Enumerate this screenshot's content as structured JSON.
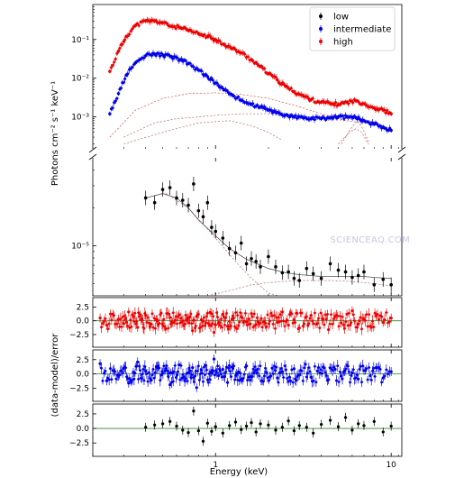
{
  "chart_data": {
    "type": "scatter",
    "xlabel": "Energy (keV)",
    "ylabel_top": "Photons cm$^{-2}$ s$^{-1}$ keV$^{-1}$",
    "ylabel_top_display": "Photons cm⁻² s⁻¹ keV⁻¹",
    "ylabel_residuals": "(data-model)/error",
    "x_scale": "log",
    "xlim": [
      0.2,
      11.5
    ],
    "x_tick_labels": [
      "1",
      "10"
    ],
    "legend_position": "top-right",
    "colors": {
      "low": "#000000",
      "intermediate": "#0000ee",
      "high": "#ee0000"
    },
    "panels": [
      {
        "id": "upper",
        "y_scale": "log",
        "ylim": [
          0.00015,
          0.8
        ],
        "y_tick_labels": [
          "10⁻³",
          "10⁻²",
          "10⁻¹"
        ],
        "series": [
          {
            "name": "high",
            "color": "#ee0000",
            "x": [
              0.25,
              0.28,
              0.31,
              0.35,
              0.4,
              0.45,
              0.5,
              0.56,
              0.63,
              0.7,
              0.8,
              0.9,
              1.0,
              1.12,
              1.25,
              1.4,
              1.6,
              1.8,
              2.0,
              2.25,
              2.5,
              2.8,
              3.15,
              3.5,
              4.0,
              4.5,
              5.0,
              5.6,
              6.3,
              7.0,
              8.0,
              9.0,
              10.0
            ],
            "y": [
              0.015,
              0.05,
              0.12,
              0.23,
              0.3,
              0.3,
              0.27,
              0.22,
              0.2,
              0.17,
              0.14,
              0.12,
              0.1,
              0.075,
              0.058,
              0.045,
              0.03,
              0.02,
              0.013,
              0.009,
              0.0062,
              0.0045,
              0.0035,
              0.0028,
              0.0024,
              0.0022,
              0.0021,
              0.0024,
              0.0026,
              0.0022,
              0.0017,
              0.0015,
              0.0012
            ]
          },
          {
            "name": "intermediate",
            "color": "#0000ee",
            "x": [
              0.25,
              0.28,
              0.31,
              0.35,
              0.4,
              0.45,
              0.5,
              0.56,
              0.63,
              0.7,
              0.8,
              0.9,
              1.0,
              1.12,
              1.25,
              1.4,
              1.6,
              1.8,
              2.0,
              2.25,
              2.5,
              2.8,
              3.15,
              3.5,
              4.0,
              4.5,
              5.0,
              5.6,
              6.3,
              7.0,
              8.0,
              9.0,
              10.0
            ],
            "y": [
              0.0012,
              0.004,
              0.012,
              0.025,
              0.038,
              0.042,
              0.04,
              0.036,
              0.03,
              0.024,
              0.016,
              0.011,
              0.0075,
              0.005,
              0.0036,
              0.0027,
              0.0021,
              0.0018,
              0.0015,
              0.0013,
              0.0011,
              0.001,
              0.00095,
              0.0009,
              0.0009,
              0.00095,
              0.001,
              0.001,
              0.00095,
              0.0008,
              0.00065,
              0.00055,
              0.00045
            ]
          }
        ],
        "model_components": [
          {
            "name": "high-soft",
            "color": "#ee0000",
            "x": [
              0.25,
              0.35,
              0.5,
              0.7,
              1.0,
              1.4,
              2.0,
              2.8,
              4.0,
              5.5
            ],
            "y": [
              0.0003,
              0.0015,
              0.003,
              0.004,
              0.0042,
              0.0038,
              0.003,
              0.002,
              0.0012,
              0.0008
            ]
          },
          {
            "name": "high-line",
            "color": "#ee0000",
            "x": [
              5.2,
              5.9,
              6.4,
              6.9,
              7.5
            ],
            "y": [
              0.0002,
              0.0005,
              0.0008,
              0.0005,
              0.0002
            ]
          },
          {
            "name": "intermediate-soft",
            "color": "#993333",
            "x": [
              0.3,
              0.45,
              0.6,
              0.8,
              1.0,
              1.4,
              2.0,
              2.8,
              3.5,
              4.5,
              5.5,
              7.0,
              8.5
            ],
            "y": [
              0.0003,
              0.0007,
              0.0009,
              0.001,
              0.0011,
              0.0012,
              0.0012,
              0.0011,
              0.001,
              0.0009,
              0.0008,
              0.0007,
              0.0006
            ]
          },
          {
            "name": "intermediate-line",
            "color": "#993333",
            "x": [
              5.0,
              5.8,
              6.3,
              6.8,
              7.4
            ],
            "y": [
              0.0002,
              0.0004,
              0.0005,
              0.0004,
              0.0002
            ]
          },
          {
            "name": "intermediate-hot",
            "color": "#993333",
            "x": [
              0.3,
              0.5,
              0.8,
              1.2,
              1.6,
              2.0,
              2.4
            ],
            "y": [
              0.0002,
              0.0004,
              0.0007,
              0.0008,
              0.0006,
              0.0004,
              0.00025
            ]
          }
        ]
      },
      {
        "id": "low",
        "y_scale": "log",
        "ylim": [
          4e-06,
          5e-05
        ],
        "y_tick_labels": [
          "10⁻⁵"
        ],
        "series": [
          {
            "name": "low",
            "color": "#000000",
            "x": [
              0.4,
              0.45,
              0.5,
              0.55,
              0.6,
              0.65,
              0.7,
              0.75,
              0.8,
              0.85,
              0.9,
              0.95,
              1.0,
              1.1,
              1.2,
              1.3,
              1.4,
              1.5,
              1.6,
              1.7,
              1.8,
              2.0,
              2.2,
              2.4,
              2.6,
              2.8,
              3.0,
              3.3,
              3.6,
              4.0,
              4.5,
              5.0,
              5.5,
              6.0,
              6.5,
              7.0,
              8.0,
              9.0,
              10.0
            ],
            "y": [
              2.4e-05,
              2.2e-05,
              2.8e-05,
              2.9e-05,
              2.4e-05,
              2.3e-05,
              2.1e-05,
              3.1e-05,
              1.9e-05,
              1.7e-05,
              2.2e-05,
              1.4e-05,
              1.3e-05,
              1.15e-05,
              9.5e-06,
              8.8e-06,
              1.05e-05,
              7.2e-06,
              7.9e-06,
              7.5e-06,
              6.8e-06,
              8.2e-06,
              6.8e-06,
              6.1e-06,
              6.2e-06,
              5.5e-06,
              5.3e-06,
              6.6e-06,
              6e-06,
              5.5e-06,
              7.2e-06,
              6.4e-06,
              6.2e-06,
              5.6e-06,
              5.8e-06,
              6.2e-06,
              4.9e-06,
              5.4e-06,
              4.9e-06
            ]
          }
        ],
        "model_components": [
          {
            "name": "low-total",
            "color": "#444444",
            "x": [
              0.4,
              0.5,
              0.6,
              0.7,
              0.8,
              1.0,
              1.2,
              1.5,
              2.0,
              2.5,
              3.0,
              4.0,
              5.0,
              6.0,
              7.0,
              8.0,
              10.0
            ],
            "y": [
              2.4e-05,
              2.6e-05,
              2.4e-05,
              2e-05,
              1.6e-05,
              1.2e-05,
              9.5e-06,
              7.8e-06,
              6.6e-06,
              6.1e-06,
              5.9e-06,
              5.7e-06,
              5.7e-06,
              5.7e-06,
              5.7e-06,
              5.6e-06,
              5.5e-06
            ]
          },
          {
            "name": "low-soft",
            "color": "#993333",
            "x": [
              0.5,
              0.7,
              1.0,
              1.3,
              1.6,
              2.0,
              2.3
            ],
            "y": [
              2.7e-05,
              2e-05,
              1.15e-05,
              7.5e-06,
              5.5e-06,
              4.2e-06,
              3.7e-06
            ]
          },
          {
            "name": "low-hard",
            "color": "#993333",
            "x": [
              0.9,
              1.2,
              1.6,
              2.0,
              3.0,
              4.5,
              6.0,
              8.0,
              10.0
            ],
            "y": [
              3.8e-06,
              4.4e-06,
              4.9e-06,
              5.1e-06,
              5.3e-06,
              5.3e-06,
              5.2e-06,
              5e-06,
              4.8e-06
            ]
          }
        ]
      },
      {
        "id": "res-high",
        "ylim": [
          -4.8,
          4.2
        ],
        "y_tick_labels": [
          "2.5",
          "0.0",
          "−2.5"
        ],
        "series_name": "high",
        "color": "#ee0000"
      },
      {
        "id": "res-intermediate",
        "ylim": [
          -4.8,
          4.2
        ],
        "y_tick_labels": [
          "2.5",
          "0.0",
          "−2.5"
        ],
        "series_name": "intermediate",
        "color": "#0000ee"
      },
      {
        "id": "res-low",
        "ylim": [
          -4.8,
          4.2
        ],
        "y_tick_labels": [
          "2.5",
          "0.0",
          "−2.5"
        ],
        "series_name": "low",
        "color": "#000000"
      }
    ],
    "residuals": {
      "high": {
        "x": [
          0.22,
          0.24,
          0.26,
          0.28,
          0.3,
          0.32,
          0.34,
          0.36,
          0.38,
          0.4,
          0.43,
          0.46,
          0.49,
          0.52,
          0.55,
          0.58,
          0.62,
          0.66,
          0.7,
          0.74,
          0.78,
          0.83,
          0.88,
          0.93,
          0.98,
          1.04,
          1.1,
          1.17,
          1.24,
          1.32,
          1.4,
          1.5,
          1.6,
          1.7,
          1.82,
          1.95,
          2.1,
          2.25,
          2.4,
          2.6,
          2.8,
          3.0,
          3.25,
          3.5,
          3.8,
          4.1,
          4.4,
          4.8,
          5.2,
          5.6,
          6.0,
          6.5,
          7.0,
          7.6,
          8.2,
          9.0,
          10.0
        ],
        "y": [
          0.5,
          -0.8,
          1.2,
          0.3,
          -0.5,
          1.6,
          0.8,
          -1.2,
          0.4,
          1.0,
          -0.6,
          0.2,
          1.4,
          -1.5,
          0.6,
          -0.3,
          1.1,
          -0.9,
          0.5,
          -1.8,
          0.8,
          0.2,
          -0.4,
          1.5,
          -2.1,
          -0.5,
          1.2,
          -1.0,
          0.3,
          -1.4,
          0.7,
          -0.2,
          1.3,
          -0.7,
          0.4,
          -1.1,
          0.9,
          -0.3,
          1.6,
          -0.8,
          0.2,
          -1.3,
          0.6,
          1.0,
          -0.5,
          0.3,
          -1.6,
          0.8,
          -0.4,
          1.2,
          1.8,
          -0.6,
          0.4,
          -1.0,
          0.9,
          -0.3,
          0.5
        ]
      },
      "intermediate": {
        "x": [
          0.22,
          0.24,
          0.26,
          0.28,
          0.3,
          0.32,
          0.34,
          0.36,
          0.38,
          0.4,
          0.43,
          0.46,
          0.49,
          0.52,
          0.55,
          0.58,
          0.62,
          0.66,
          0.7,
          0.74,
          0.78,
          0.83,
          0.88,
          0.93,
          0.98,
          1.04,
          1.1,
          1.17,
          1.24,
          1.32,
          1.4,
          1.5,
          1.6,
          1.7,
          1.82,
          1.95,
          2.1,
          2.25,
          2.4,
          2.6,
          2.8,
          3.0,
          3.25,
          3.5,
          3.8,
          4.1,
          4.4,
          4.8,
          5.2,
          5.6,
          6.0,
          6.5,
          7.0,
          7.6,
          8.2,
          9.0,
          10.0
        ],
        "y": [
          1.8,
          -1.2,
          0.6,
          -0.4,
          1.0,
          -1.6,
          0.3,
          2.1,
          -0.8,
          0.5,
          -1.1,
          1.3,
          -0.2,
          0.9,
          -1.9,
          0.4,
          1.6,
          -0.6,
          0.2,
          1.1,
          -2.4,
          0.7,
          1.5,
          -1.0,
          2.6,
          -0.3,
          0.8,
          -1.5,
          1.2,
          0.1,
          -0.9,
          1.4,
          -0.5,
          0.6,
          -1.2,
          0.3,
          1.0,
          -0.7,
          0.4,
          -1.3,
          0.9,
          -0.2,
          1.7,
          -0.6,
          0.5,
          1.2,
          -1.0,
          0.8,
          -0.4,
          1.5,
          0.2,
          -0.9,
          0.6,
          -0.3,
          1.1,
          -0.7,
          0.4
        ]
      },
      "low": {
        "x": [
          0.4,
          0.45,
          0.5,
          0.55,
          0.6,
          0.65,
          0.7,
          0.75,
          0.8,
          0.85,
          0.9,
          0.95,
          1.0,
          1.1,
          1.2,
          1.3,
          1.4,
          1.5,
          1.6,
          1.7,
          1.8,
          2.0,
          2.2,
          2.4,
          2.6,
          2.8,
          3.0,
          3.3,
          3.6,
          4.0,
          4.5,
          5.0,
          5.5,
          6.0,
          6.5,
          7.0,
          8.0,
          9.0,
          10.0
        ],
        "y": [
          0.2,
          0.6,
          0.8,
          1.2,
          0.4,
          -0.3,
          -0.7,
          3.0,
          -0.4,
          -2.2,
          0.9,
          -0.5,
          0.3,
          -0.8,
          0.5,
          1.1,
          -0.2,
          0.4,
          1.0,
          -0.6,
          0.8,
          0.6,
          -0.3,
          0.2,
          1.3,
          -0.4,
          0.5,
          0.2,
          -0.8,
          0.7,
          1.4,
          0.3,
          1.9,
          -0.3,
          0.8,
          0.5,
          1.2,
          -0.6,
          0.4
        ]
      }
    }
  },
  "watermark": "SCIENCEAQ.COM"
}
